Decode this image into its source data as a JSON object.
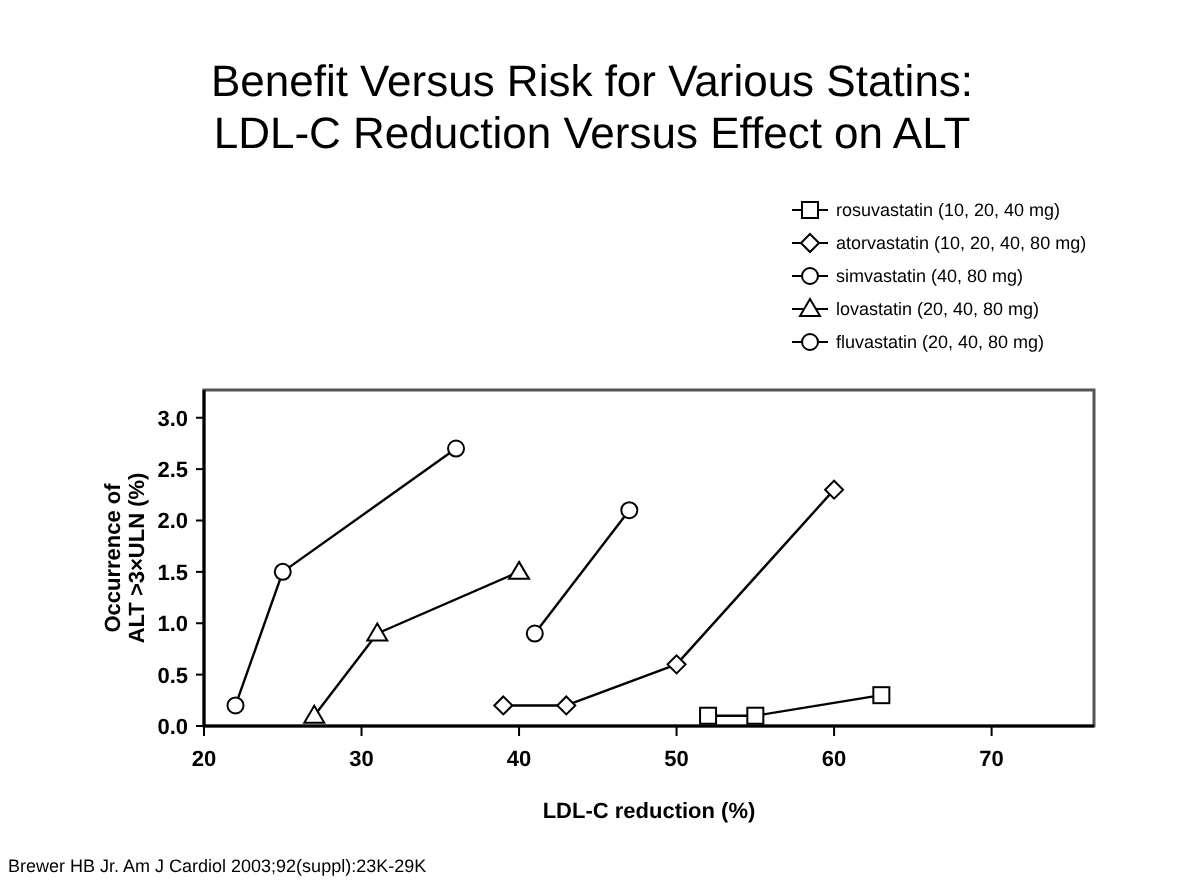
{
  "chart_data": {
    "type": "line",
    "title": "Benefit Versus Risk for Various Statins:\nLDL-C Reduction Versus Effect on ALT",
    "xlabel": "LDL-C reduction (%)",
    "ylabel": "Occurrence of\nALT >3×ULN (%)",
    "annotations": [
      "Brewer HB Jr. Am J Cardiol 2003;92(suppl):23K-29K"
    ],
    "xlim": [
      20,
      76.5
    ],
    "xticks": [
      20,
      30,
      40,
      50,
      60,
      70
    ],
    "ylim": [
      0,
      3.27
    ],
    "yticks": [
      {
        "value": 0,
        "label": "0.0"
      },
      {
        "value": 0.5,
        "label": "0.5"
      },
      {
        "value": 1,
        "label": "1.0"
      },
      {
        "value": 1.5,
        "label": "1.5"
      },
      {
        "value": 2,
        "label": "2.0"
      },
      {
        "value": 2.5,
        "label": "2.5"
      },
      {
        "value": 3,
        "label": "3.0"
      }
    ],
    "legend": "top right",
    "grid": false,
    "line_style": "solid",
    "series": [
      {
        "name": "rosuvastatin (10, 20, 40 mg)",
        "color": "#000000",
        "marker": "square",
        "x": [
          52,
          55,
          63
        ],
        "values": [
          0.1,
          0.1,
          0.3
        ]
      },
      {
        "name": "atorvastatin (10, 20, 40, 80 mg)",
        "color": "#000000",
        "marker": "diamond",
        "x": [
          39,
          43,
          50,
          60
        ],
        "values": [
          0.2,
          0.2,
          0.6,
          2.3
        ]
      },
      {
        "name": "simvastatin (40, 80 mg)",
        "color": "#000000",
        "marker": "circle",
        "x": [
          41,
          47
        ],
        "values": [
          0.9,
          2.1
        ]
      },
      {
        "name": "lovastatin (20, 40, 80 mg)",
        "color": "#000000",
        "marker": "triangle",
        "x": [
          27,
          31,
          40
        ],
        "values": [
          0.1,
          0.9,
          1.5
        ]
      },
      {
        "name": "fluvastatin (20, 40, 80 mg)",
        "color": "#000000",
        "marker": "circle",
        "x": [
          22,
          25,
          36
        ],
        "values": [
          0.2,
          1.5,
          2.7
        ]
      }
    ]
  }
}
